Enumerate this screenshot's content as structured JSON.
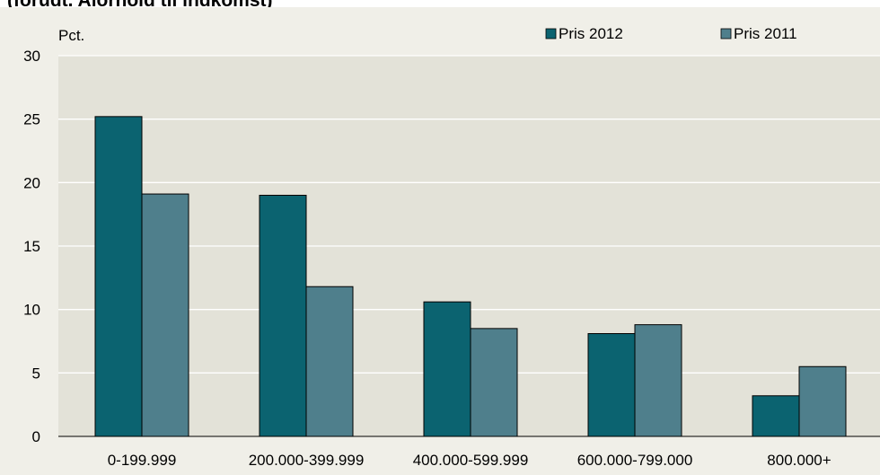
{
  "page": {
    "title": "(forudt. Alorhold til indkomst)"
  },
  "chart_data": {
    "type": "bar",
    "title": "(forudt. Alorhold til indkomst)",
    "xlabel": "",
    "ylabel": "Pct.",
    "categories": [
      "0-199.999",
      "200.000-399.999",
      "400.000-599.999",
      "600.000-799.000",
      "800.000+"
    ],
    "series": [
      {
        "name": "Pris 2012",
        "color": "#0b6370",
        "values": [
          25.2,
          19.0,
          10.6,
          8.1,
          3.2
        ]
      },
      {
        "name": "Pris 2011",
        "color": "#4f7f8c",
        "values": [
          19.1,
          11.8,
          8.5,
          8.8,
          5.5
        ]
      }
    ],
    "ylim": [
      0,
      30
    ],
    "yticks": [
      0,
      5,
      10,
      15,
      20,
      25,
      30
    ],
    "grid": true,
    "legend_position": "top-right",
    "plot_background": "#e3e2d8"
  }
}
